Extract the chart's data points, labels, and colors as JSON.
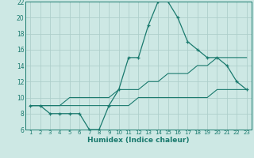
{
  "xlabel": "Humidex (Indice chaleur)",
  "x_values": [
    1,
    2,
    3,
    4,
    5,
    6,
    7,
    8,
    9,
    10,
    11,
    12,
    13,
    14,
    15,
    16,
    17,
    18,
    19,
    20,
    21,
    22,
    23
  ],
  "main_line": [
    9,
    9,
    8,
    8,
    8,
    8,
    6,
    6,
    9,
    11,
    15,
    15,
    19,
    22,
    22,
    20,
    17,
    16,
    15,
    15,
    14,
    12,
    11
  ],
  "upper_line": [
    9,
    9,
    9,
    9,
    10,
    10,
    10,
    10,
    10,
    11,
    11,
    11,
    12,
    12,
    13,
    13,
    13,
    14,
    14,
    15,
    15,
    15,
    15
  ],
  "lower_line": [
    9,
    9,
    9,
    9,
    9,
    9,
    9,
    9,
    9,
    9,
    9,
    10,
    10,
    10,
    10,
    10,
    10,
    10,
    10,
    11,
    11,
    11,
    11
  ],
  "line_color": "#1a7a6e",
  "bg_color": "#cde8e4",
  "grid_color": "#aecfcb",
  "ylim": [
    6,
    22
  ],
  "yticks": [
    6,
    8,
    10,
    12,
    14,
    16,
    18,
    20,
    22
  ],
  "xticks": [
    1,
    2,
    3,
    4,
    5,
    6,
    7,
    8,
    9,
    10,
    11,
    12,
    13,
    14,
    15,
    16,
    17,
    18,
    19,
    20,
    21,
    22,
    23
  ]
}
